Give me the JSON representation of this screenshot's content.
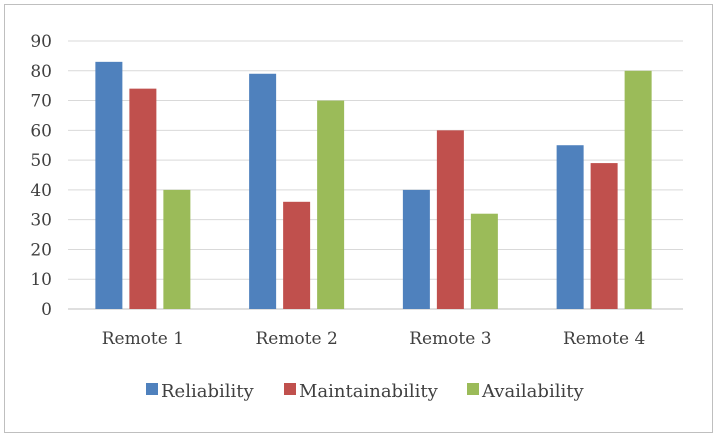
{
  "chart_data": {
    "type": "bar",
    "categories": [
      "Remote 1",
      "Remote 2",
      "Remote 3",
      "Remote 4"
    ],
    "series": [
      {
        "name": "Reliability",
        "values": [
          83,
          79,
          40,
          55
        ],
        "color": "#4f81bd"
      },
      {
        "name": "Maintainability",
        "values": [
          74,
          36,
          60,
          49
        ],
        "color": "#c0504d"
      },
      {
        "name": "Availability",
        "values": [
          40,
          70,
          32,
          80
        ],
        "color": "#9bbb59"
      }
    ],
    "ylim": [
      0,
      90
    ],
    "yticks": [
      0,
      10,
      20,
      30,
      40,
      50,
      60,
      70,
      80,
      90
    ],
    "grid": true,
    "legend_position": "bottom",
    "gridline_color": "#d9d9d9",
    "axis_color": "#bfbfbf"
  }
}
